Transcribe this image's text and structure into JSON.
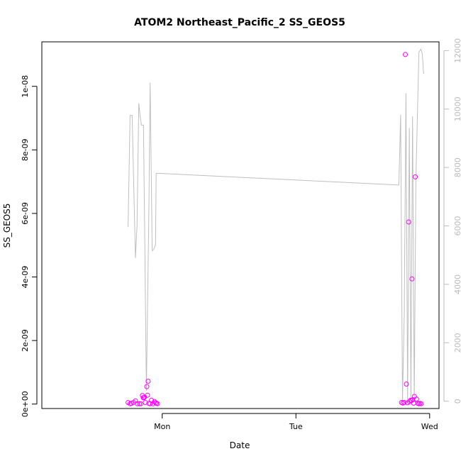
{
  "chart_data": {
    "type": "scatter",
    "title": "ATOM2 Northeast_Pacific_2 SS_GEOS5",
    "xlabel": "Date",
    "ylabel": "SS_GEOS5",
    "xlim": [
      -0.9,
      2.07
    ],
    "ylim": [
      -1.4e-10,
      1.14e-08
    ],
    "y2lim": [
      -250,
      12300
    ],
    "x_ticks": [
      {
        "value": 0,
        "label": "Mon"
      },
      {
        "value": 1,
        "label": "Tue"
      },
      {
        "value": 2,
        "label": "Wed"
      }
    ],
    "y_ticks": [
      {
        "value": 0,
        "label": "0e+00"
      },
      {
        "value": 2e-09,
        "label": "2e-09"
      },
      {
        "value": 4e-09,
        "label": "4e-09"
      },
      {
        "value": 6e-09,
        "label": "6e-09"
      },
      {
        "value": 8e-09,
        "label": "8e-09"
      },
      {
        "value": 1e-08,
        "label": "1e-08"
      }
    ],
    "y2_ticks": [
      {
        "value": 0,
        "label": "0"
      },
      {
        "value": 2000,
        "label": "2000"
      },
      {
        "value": 4000,
        "label": "4000"
      },
      {
        "value": 6000,
        "label": "6000"
      },
      {
        "value": 8000,
        "label": "8000"
      },
      {
        "value": 10000,
        "label": "10000"
      },
      {
        "value": 12000,
        "label": "12000"
      }
    ],
    "colors": {
      "points": "#ff00ff",
      "line": "#bebebe",
      "right_axis": "#bbbbbb"
    },
    "series": [
      {
        "type": "scatter",
        "axis": "left",
        "x": [
          -0.255,
          -0.24,
          -0.23,
          -0.215,
          -0.2,
          -0.185,
          -0.17,
          -0.16,
          -0.148,
          -0.142,
          -0.137,
          -0.132,
          -0.127,
          -0.115,
          -0.11,
          -0.105,
          -0.1,
          -0.09,
          -0.08,
          -0.07,
          -0.058,
          -0.05,
          -0.043,
          -0.035,
          1.79,
          1.8,
          1.81,
          1.818,
          1.826,
          1.835,
          1.843,
          1.85,
          1.857,
          1.865,
          1.868,
          1.874,
          1.88,
          1.886,
          1.893,
          1.902,
          1.912,
          1.92,
          1.928,
          1.937
        ],
        "y": [
          5e-11,
          1e-11,
          2e-11,
          5e-11,
          1e-10,
          1e-11,
          1e-11,
          1e-11,
          2.7e-10,
          2e-10,
          2e-10,
          2.2e-10,
          5e-11,
          5.5e-10,
          2.8e-10,
          7.2e-10,
          2e-11,
          1e-11,
          1.2e-10,
          1e-11,
          8e-11,
          4e-11,
          2e-11,
          1e-11,
          5e-11,
          3e-11,
          5e-11,
          1.1e-08,
          6.3e-10,
          4e-11,
          5.73e-09,
          8e-11,
          1.2e-10,
          1.1e-10,
          3.94e-09,
          1.4e-10,
          3e-11,
          2.4e-10,
          7.15e-09,
          1.6e-10,
          2e-11,
          1e-11,
          2e-11,
          1e-11
        ]
      },
      {
        "type": "line",
        "axis": "right",
        "x": [
          -0.255,
          -0.24,
          -0.225,
          -0.2,
          -0.188,
          -0.175,
          -0.165,
          -0.155,
          -0.14,
          -0.127,
          -0.118,
          -0.1,
          -0.09,
          -0.075,
          -0.063,
          -0.05,
          -0.045,
          -0.025,
          1.77,
          1.783,
          1.797,
          1.81,
          1.823,
          1.835,
          1.848,
          1.86,
          1.872,
          1.885,
          1.897,
          1.91,
          1.92,
          1.935,
          1.945,
          1.955
        ],
        "y": [
          5960,
          9780,
          9780,
          4900,
          6000,
          10200,
          9750,
          9450,
          9450,
          4000,
          360,
          6300,
          10900,
          5150,
          5200,
          5350,
          7800,
          7800,
          7400,
          9800,
          0,
          3000,
          10550,
          0,
          9350,
          60,
          9750,
          0,
          7550,
          10050,
          11950,
          12050,
          11900,
          11200
        ]
      }
    ]
  }
}
